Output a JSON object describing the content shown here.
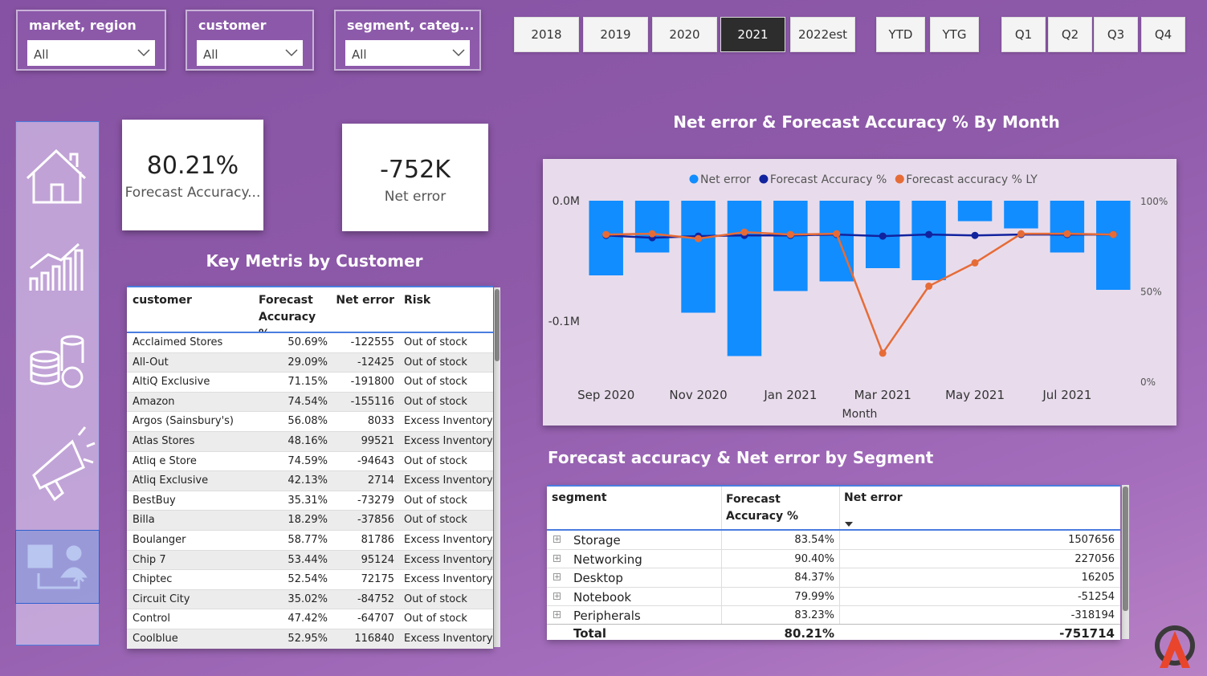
{
  "filters": [
    {
      "label": "market, region",
      "value": "All"
    },
    {
      "label": "customer",
      "value": "All"
    },
    {
      "label": "segment, categ...",
      "value": "All"
    }
  ],
  "year_buttons": [
    "2018",
    "2019",
    "2020",
    "2021",
    "2022est"
  ],
  "active_year": 3,
  "period_buttons": [
    "YTD",
    "YTG"
  ],
  "quarter_buttons": [
    "Q1",
    "Q2",
    "Q3",
    "Q4"
  ],
  "kpis": [
    {
      "value": "80.21%",
      "label": "Forecast Accuracy..."
    },
    {
      "value": "-752K",
      "label": "Net error"
    }
  ],
  "customer_table": {
    "title": "Key Metris by Customer",
    "columns": [
      "customer",
      "Forecast Accuracy %",
      "Net error",
      "Risk"
    ],
    "rows": [
      [
        "Acclaimed Stores",
        "50.69%",
        -122555,
        "Out of stock"
      ],
      [
        "All-Out",
        "29.09%",
        -12425,
        "Out of stock"
      ],
      [
        "AltiQ Exclusive",
        "71.15%",
        -191800,
        "Out of stock"
      ],
      [
        "Amazon",
        "74.54%",
        -155116,
        "Out of stock"
      ],
      [
        "Argos (Sainsbury's)",
        "56.08%",
        8033,
        "Excess Inventory"
      ],
      [
        "Atlas Stores",
        "48.16%",
        99521,
        "Excess Inventory"
      ],
      [
        "Atliq e Store",
        "74.59%",
        -94643,
        "Out of stock"
      ],
      [
        "Atliq Exclusive",
        "42.13%",
        2714,
        "Excess Inventory"
      ],
      [
        "BestBuy",
        "35.31%",
        -73279,
        "Out of stock"
      ],
      [
        "Billa",
        "18.29%",
        -37856,
        "Out of stock"
      ],
      [
        "Boulanger",
        "58.77%",
        81786,
        "Excess Inventory"
      ],
      [
        "Chip 7",
        "53.44%",
        95124,
        "Excess Inventory"
      ],
      [
        "Chiptec",
        "52.54%",
        72175,
        "Excess Inventory"
      ],
      [
        "Circuit City",
        "35.02%",
        -84752,
        "Out of stock"
      ],
      [
        "Control",
        "47.42%",
        -64707,
        "Out of stock"
      ],
      [
        "Coolblue",
        "52.95%",
        116840,
        "Excess Inventory"
      ]
    ]
  },
  "segment_table": {
    "title": "Forecast accuracy & Net error by Segment",
    "columns": [
      "segment",
      "Forecast Accuracy %",
      "Net error"
    ],
    "rows": [
      [
        "Storage",
        "83.54%",
        1507656
      ],
      [
        "Networking",
        "90.40%",
        227056
      ],
      [
        "Desktop",
        "84.37%",
        16205
      ],
      [
        "Notebook",
        "79.99%",
        -51254
      ],
      [
        "Peripherals",
        "83.23%",
        -318194
      ]
    ],
    "total": [
      "Total",
      "80.21%",
      -751714
    ]
  },
  "chart_data": {
    "type": "combo",
    "title": "Net error & Forecast Accuracy % By Month",
    "x_label": "Month",
    "categories": [
      "Sep 2020",
      null,
      "Nov 2020",
      null,
      "Jan 2021",
      null,
      "Mar 2021",
      null,
      "May 2021",
      null,
      "Jul 2021",
      null
    ],
    "ylim": [
      -150000,
      0
    ],
    "yticks": [
      {
        "value": 0,
        "label": "0.0M"
      },
      {
        "value": -100000,
        "label": "-0.1M"
      }
    ],
    "y2lim": [
      0,
      100
    ],
    "y2ticks": [
      {
        "value": 100,
        "label": "100%"
      },
      {
        "value": 50,
        "label": "50%"
      },
      {
        "value": 0,
        "label": "0%"
      }
    ],
    "legend": "top",
    "series": [
      {
        "name": "Net error",
        "type": "bar",
        "color": "#118dff",
        "values": [
          -62000,
          -43000,
          -93000,
          -129000,
          -75000,
          -67000,
          -56000,
          -66000,
          -17000,
          -23000,
          -43000,
          -74000
        ]
      },
      {
        "name": "Forecast Accuracy %",
        "type": "line",
        "axis": "y2",
        "color": "#12239e",
        "values": [
          80.8,
          79.5,
          80.4,
          80.8,
          80.8,
          81.3,
          80.4,
          81.3,
          80.8,
          81.3,
          81.3,
          81.3
        ]
      },
      {
        "name": "Forecast accuracy % LY",
        "type": "line",
        "axis": "y2",
        "color": "#e66c37",
        "values": [
          81.3,
          81.7,
          79.0,
          82.6,
          81.3,
          81.7,
          15.6,
          52.7,
          65.6,
          81.7,
          81.7,
          81.3
        ]
      }
    ]
  }
}
